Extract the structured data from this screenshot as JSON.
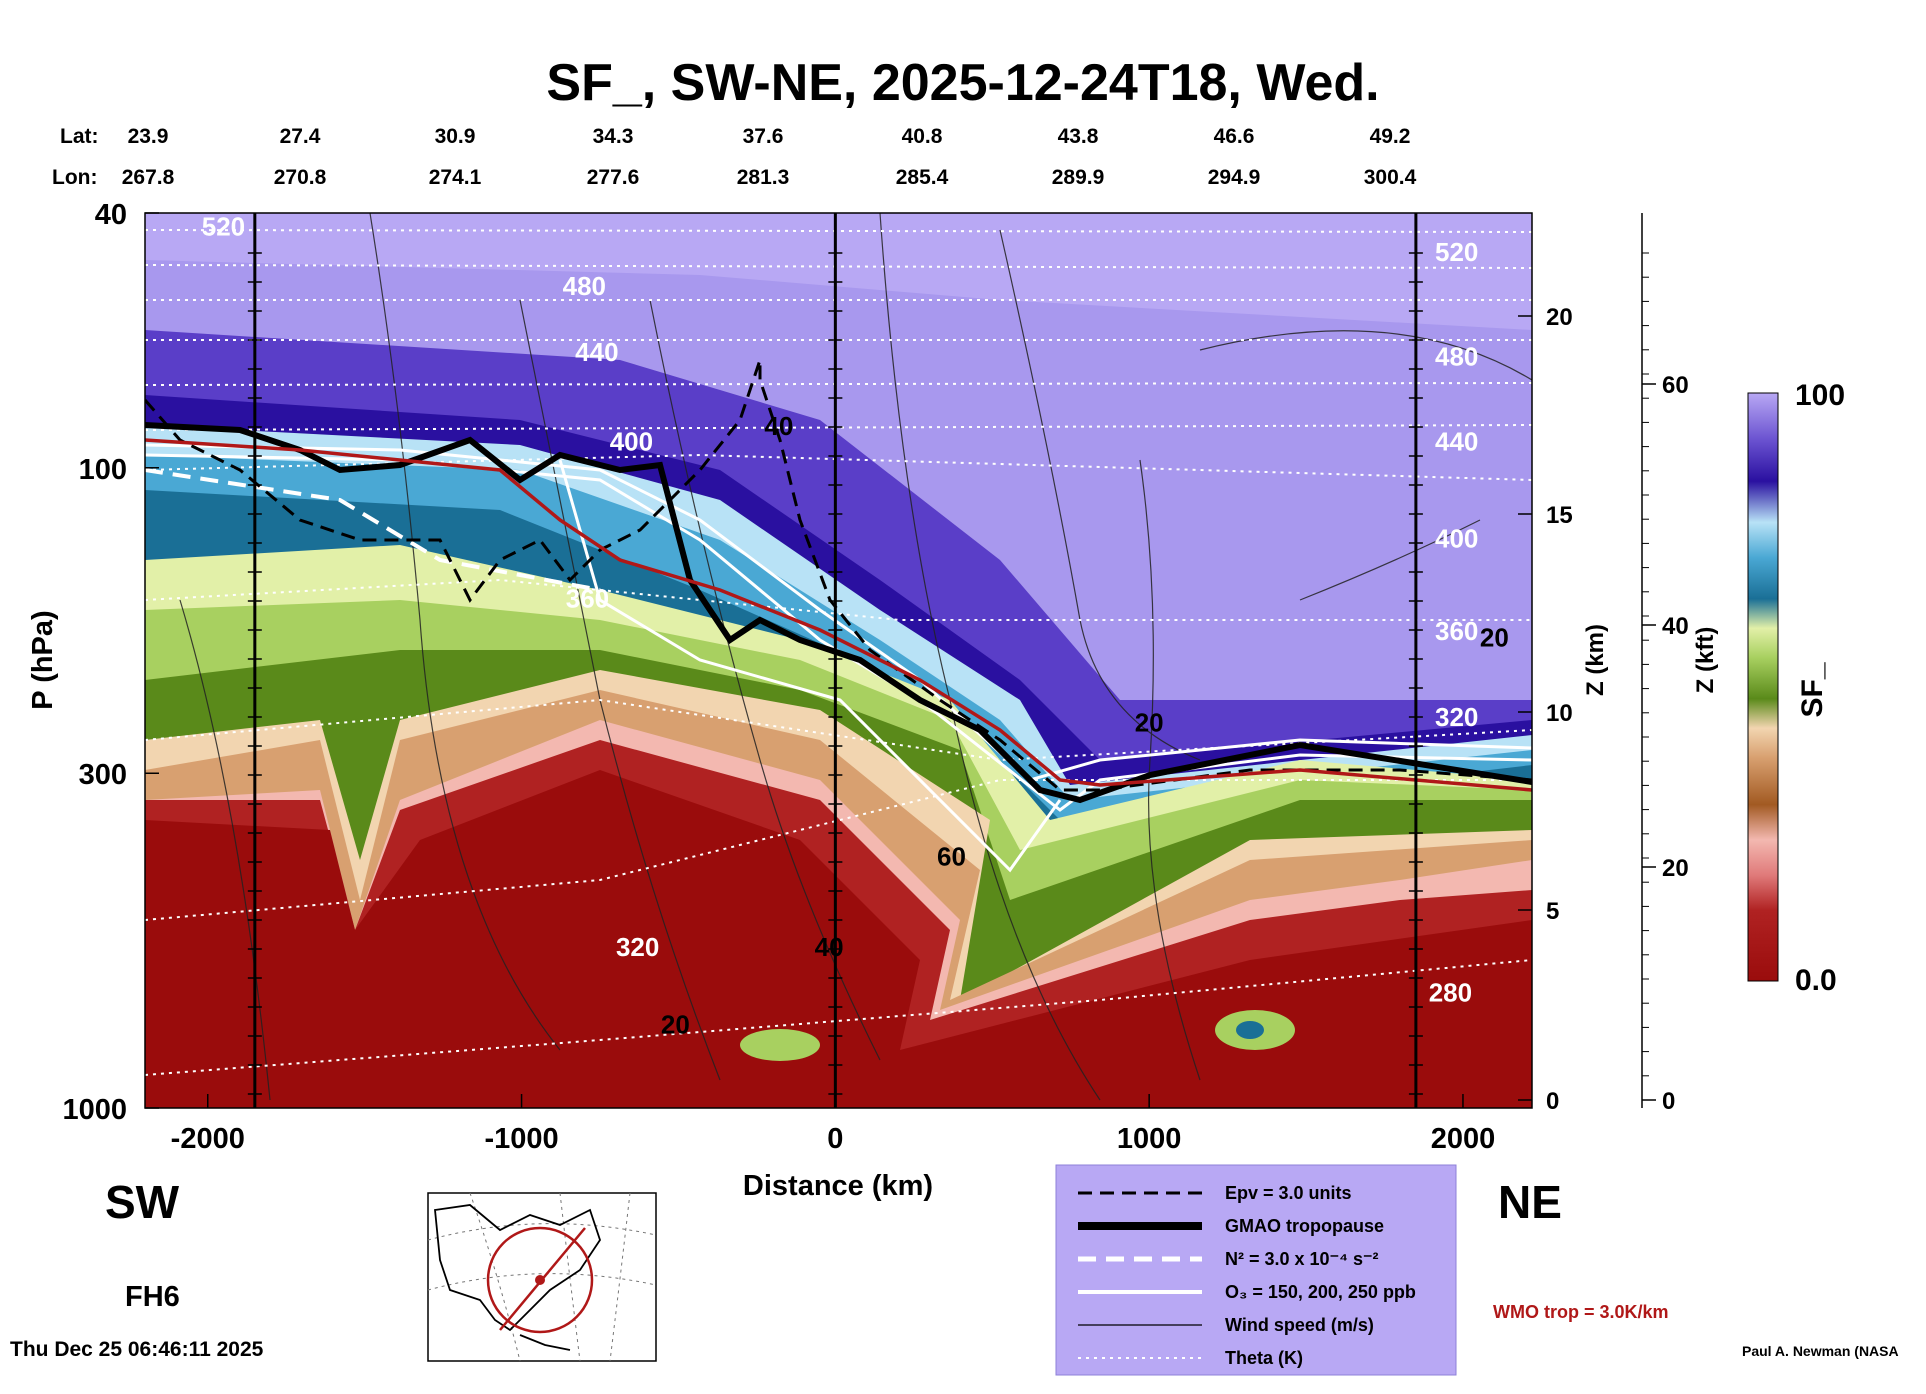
{
  "chart_data": {
    "type": "heatmap",
    "title": "SF_, SW-NE, 2025-12-24T18, Wed.",
    "lat_label": "Lat:",
    "lon_label": "Lon:",
    "lat": [
      "23.9",
      "27.4",
      "30.9",
      "34.3",
      "37.6",
      "40.8",
      "43.8",
      "46.6",
      "49.2"
    ],
    "lon": [
      "267.8",
      "270.8",
      "274.1",
      "277.6",
      "281.3",
      "285.4",
      "289.9",
      "294.9",
      "300.4"
    ],
    "xlabel": "Distance (km)",
    "x_ticks": [
      "-2000",
      "-1000",
      "0",
      "1000",
      "2000"
    ],
    "xlim": [
      -2200,
      2220
    ],
    "ylabel": "P (hPa)",
    "y_scale": "log",
    "y_ticks": [
      "40",
      "100",
      "300",
      "1000"
    ],
    "ylim": [
      1000,
      40
    ],
    "z_km_label": "Z (km)",
    "z_km_ticks": [
      "0",
      "5",
      "10",
      "15",
      "20"
    ],
    "z_kft_label": "Z (kft)",
    "z_kft_ticks": [
      "0",
      "20",
      "40",
      "60"
    ],
    "colorbar": {
      "label": "SF_",
      "max_label": "100",
      "min_label": "0.0"
    },
    "left_label": "SW",
    "right_label": "NE",
    "forecast_hour": "FH6",
    "timestamp": "Thu Dec 25 06:46:11 2025",
    "credit": "Paul A. Newman (NASA",
    "wmo_note": "WMO trop = 3.0K/km",
    "vertical_lines_km": [
      -1850,
      0,
      1850
    ],
    "theta_labels": [
      {
        "text": "520",
        "x": -1950,
        "p": 42
      },
      {
        "text": "480",
        "x": -800,
        "p": 52
      },
      {
        "text": "440",
        "x": -760,
        "p": 66
      },
      {
        "text": "400",
        "x": -650,
        "p": 91
      },
      {
        "text": "360",
        "x": -790,
        "p": 160
      },
      {
        "text": "320",
        "x": -630,
        "p": 560
      },
      {
        "text": "520",
        "x": 1980,
        "p": 46
      },
      {
        "text": "480",
        "x": 1980,
        "p": 67
      },
      {
        "text": "440",
        "x": 1980,
        "p": 91
      },
      {
        "text": "400",
        "x": 1980,
        "p": 129
      },
      {
        "text": "360",
        "x": 1980,
        "p": 180
      },
      {
        "text": "320",
        "x": 1980,
        "p": 245
      },
      {
        "text": "280",
        "x": 1960,
        "p": 660
      }
    ],
    "wind_labels": [
      {
        "text": "40",
        "x": -180,
        "p": 86
      },
      {
        "text": "20",
        "x": -510,
        "p": 740
      },
      {
        "text": "60",
        "x": 370,
        "p": 405
      },
      {
        "text": "40",
        "x": -20,
        "p": 560
      },
      {
        "text": "20",
        "x": 1000,
        "p": 250
      },
      {
        "text": "20",
        "x": 2100,
        "p": 184
      }
    ],
    "legend": [
      {
        "label": "Epv = 3.0 units",
        "style": "dashed-black"
      },
      {
        "label": "GMAO tropopause",
        "style": "thick-black"
      },
      {
        "label": "N² = 3.0 x 10⁻⁴ s⁻²",
        "style": "dashed-white"
      },
      {
        "label": "O₃ = 150, 200, 250 ppb",
        "style": "solid-white"
      },
      {
        "label": "Wind speed (m/s)",
        "style": "thin-black"
      },
      {
        "label": "Theta (K)",
        "style": "dotted-white"
      }
    ],
    "colors": {
      "legend_box": "#b8a8f4",
      "wmo_text": "#b01818",
      "colorbar_top": "#3a1aa0",
      "colorbar_bottom": "#9a0c0c"
    }
  }
}
